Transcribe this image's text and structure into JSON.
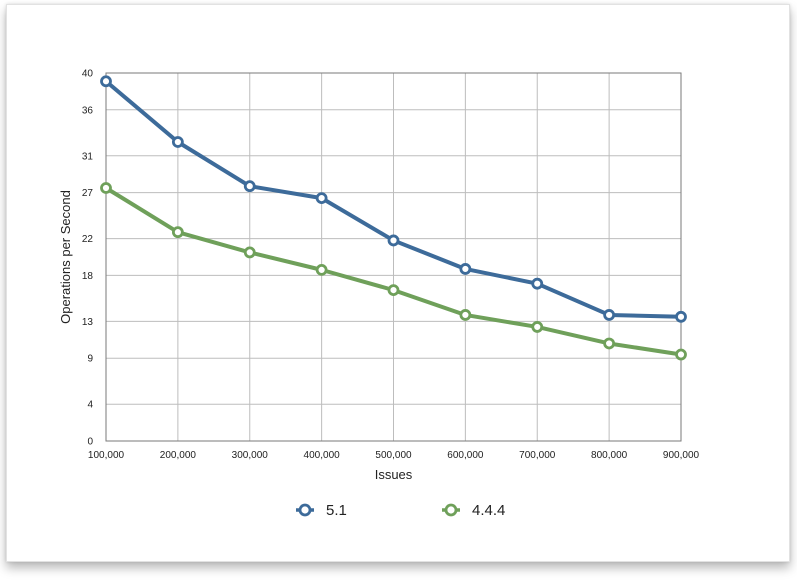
{
  "chart_data": {
    "type": "line",
    "title": "",
    "xlabel": "Issues",
    "ylabel": "Operations per Second",
    "x": [
      100000,
      200000,
      300000,
      400000,
      500000,
      600000,
      700000,
      800000,
      900000
    ],
    "x_tick_labels": [
      "100,000",
      "200,000",
      "300,000",
      "400,000",
      "500,000",
      "600,000",
      "700,000",
      "800,000",
      "900,000"
    ],
    "y_ticks": [
      0,
      4,
      9,
      13,
      18,
      22,
      27,
      31,
      36,
      40
    ],
    "ylim": [
      0,
      40
    ],
    "grid": true,
    "legend_position": "bottom",
    "series": [
      {
        "name": "5.1",
        "color": "#3d6b9a",
        "values": [
          39.1,
          32.5,
          27.7,
          26.4,
          21.8,
          18.7,
          17.1,
          13.7,
          13.5
        ]
      },
      {
        "name": "4.4.4",
        "color": "#6fa05a",
        "values": [
          27.5,
          22.7,
          20.5,
          18.6,
          16.4,
          13.7,
          12.4,
          10.6,
          9.4
        ]
      }
    ]
  }
}
